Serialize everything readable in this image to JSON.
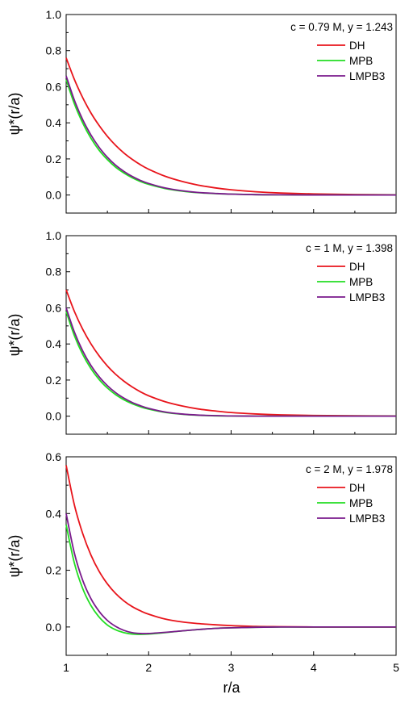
{
  "xlabel": "r/a",
  "chart_data": [
    {
      "type": "line",
      "annotation": "c = 0.79 M, y = 1.243",
      "xlabel": "",
      "ylabel": "ψ*(r/a)",
      "xlim": [
        1,
        5
      ],
      "ylim": [
        -0.1,
        1.0
      ],
      "xticks": [
        "1",
        "2",
        "3",
        "4",
        "5"
      ],
      "yticks": [
        "0.0",
        "0.2",
        "0.4",
        "0.6",
        "0.8",
        "1.0"
      ],
      "legend_position": "top-right",
      "series": [
        {
          "name": "DH",
          "color": "#e8141b",
          "x": [
            1.0,
            1.1,
            1.2,
            1.3,
            1.4,
            1.5,
            1.6,
            1.7,
            1.8,
            1.9,
            2.0,
            2.2,
            2.4,
            2.6,
            2.8,
            3.0,
            3.3,
            3.6,
            4.0,
            4.5,
            5.0
          ],
          "y": [
            0.76,
            0.64,
            0.54,
            0.455,
            0.385,
            0.325,
            0.275,
            0.233,
            0.198,
            0.168,
            0.143,
            0.104,
            0.076,
            0.055,
            0.04,
            0.029,
            0.018,
            0.011,
            0.006,
            0.003,
            0.001
          ]
        },
        {
          "name": "MPB",
          "color": "#22dd22",
          "x": [
            1.0,
            1.1,
            1.2,
            1.3,
            1.4,
            1.5,
            1.6,
            1.7,
            1.8,
            1.9,
            2.0,
            2.2,
            2.4,
            2.6,
            2.8,
            3.0,
            3.3,
            3.6,
            4.0,
            4.5,
            5.0
          ],
          "y": [
            0.64,
            0.505,
            0.4,
            0.315,
            0.248,
            0.196,
            0.154,
            0.122,
            0.096,
            0.075,
            0.059,
            0.036,
            0.022,
            0.013,
            0.008,
            0.005,
            0.002,
            0.001,
            0.0,
            0.0,
            0.0
          ]
        },
        {
          "name": "LMPB3",
          "color": "#7a1a8c",
          "x": [
            1.0,
            1.1,
            1.2,
            1.3,
            1.4,
            1.5,
            1.6,
            1.7,
            1.8,
            1.9,
            2.0,
            2.2,
            2.4,
            2.6,
            2.8,
            3.0,
            3.3,
            3.6,
            4.0,
            4.5,
            5.0
          ],
          "y": [
            0.66,
            0.525,
            0.418,
            0.333,
            0.264,
            0.209,
            0.165,
            0.131,
            0.103,
            0.081,
            0.064,
            0.039,
            0.024,
            0.014,
            0.009,
            0.005,
            0.002,
            0.001,
            0.0,
            0.0,
            0.0
          ]
        }
      ]
    },
    {
      "type": "line",
      "annotation": "c = 1 M, y = 1.398",
      "xlabel": "",
      "ylabel": "ψ*(r/a)",
      "xlim": [
        1,
        5
      ],
      "ylim": [
        -0.1,
        1.0
      ],
      "xticks": [
        "1",
        "2",
        "3",
        "4",
        "5"
      ],
      "yticks": [
        "0.0",
        "0.2",
        "0.4",
        "0.6",
        "0.8",
        "1.0"
      ],
      "legend_position": "top-right",
      "series": [
        {
          "name": "DH",
          "color": "#e8141b",
          "x": [
            1.0,
            1.1,
            1.2,
            1.3,
            1.4,
            1.5,
            1.6,
            1.7,
            1.8,
            1.9,
            2.0,
            2.2,
            2.4,
            2.6,
            2.8,
            3.0,
            3.3,
            3.6,
            4.0,
            4.5,
            5.0
          ],
          "y": [
            0.7,
            0.58,
            0.482,
            0.401,
            0.334,
            0.278,
            0.232,
            0.194,
            0.162,
            0.135,
            0.113,
            0.08,
            0.057,
            0.04,
            0.029,
            0.02,
            0.012,
            0.007,
            0.004,
            0.002,
            0.001
          ]
        },
        {
          "name": "MPB",
          "color": "#22dd22",
          "x": [
            1.0,
            1.1,
            1.2,
            1.3,
            1.4,
            1.5,
            1.6,
            1.7,
            1.8,
            1.9,
            2.0,
            2.2,
            2.4,
            2.6,
            2.8,
            3.0,
            3.3,
            3.6,
            4.0,
            4.5,
            5.0
          ],
          "y": [
            0.58,
            0.446,
            0.343,
            0.264,
            0.203,
            0.156,
            0.119,
            0.091,
            0.069,
            0.052,
            0.039,
            0.021,
            0.011,
            0.005,
            0.002,
            0.001,
            0.0,
            0.0,
            0.0,
            0.0,
            0.0
          ]
        },
        {
          "name": "LMPB3",
          "color": "#7a1a8c",
          "x": [
            1.0,
            1.1,
            1.2,
            1.3,
            1.4,
            1.5,
            1.6,
            1.7,
            1.8,
            1.9,
            2.0,
            2.2,
            2.4,
            2.6,
            2.8,
            3.0,
            3.3,
            3.6,
            4.0,
            4.5,
            5.0
          ],
          "y": [
            0.6,
            0.466,
            0.362,
            0.281,
            0.218,
            0.169,
            0.13,
            0.1,
            0.076,
            0.058,
            0.043,
            0.023,
            0.012,
            0.006,
            0.003,
            0.001,
            0.0,
            0.0,
            0.0,
            0.0,
            0.0
          ]
        }
      ]
    },
    {
      "type": "line",
      "annotation": "c = 2 M, y = 1.978",
      "xlabel": "r/a",
      "ylabel": "ψ*(r/a)",
      "xlim": [
        1,
        5
      ],
      "ylim": [
        -0.1,
        0.6
      ],
      "xticks": [
        "1",
        "2",
        "3",
        "4",
        "5"
      ],
      "yticks": [
        "0.0",
        "0.2",
        "0.4",
        "0.6"
      ],
      "legend_position": "top-right",
      "series": [
        {
          "name": "DH",
          "color": "#e8141b",
          "x": [
            1.0,
            1.1,
            1.2,
            1.3,
            1.4,
            1.5,
            1.6,
            1.7,
            1.8,
            1.9,
            2.0,
            2.2,
            2.4,
            2.6,
            2.8,
            3.0,
            3.3,
            3.6,
            4.0,
            4.5,
            5.0
          ],
          "y": [
            0.57,
            0.43,
            0.33,
            0.254,
            0.196,
            0.152,
            0.118,
            0.092,
            0.072,
            0.057,
            0.045,
            0.028,
            0.018,
            0.012,
            0.008,
            0.005,
            0.002,
            0.001,
            0.0,
            0.0,
            0.0
          ]
        },
        {
          "name": "MPB",
          "color": "#22dd22",
          "x": [
            1.0,
            1.1,
            1.2,
            1.3,
            1.4,
            1.5,
            1.6,
            1.7,
            1.8,
            1.9,
            2.0,
            2.2,
            2.4,
            2.6,
            2.8,
            3.0,
            3.3,
            3.6,
            4.0,
            4.5,
            5.0
          ],
          "y": [
            0.36,
            0.225,
            0.136,
            0.076,
            0.035,
            0.007,
            -0.01,
            -0.02,
            -0.025,
            -0.026,
            -0.025,
            -0.02,
            -0.014,
            -0.009,
            -0.005,
            -0.003,
            -0.001,
            0.0,
            0.0,
            0.0,
            0.0
          ]
        },
        {
          "name": "LMPB3",
          "color": "#7a1a8c",
          "x": [
            1.0,
            1.1,
            1.2,
            1.3,
            1.4,
            1.5,
            1.6,
            1.7,
            1.8,
            1.9,
            2.0,
            2.2,
            2.4,
            2.6,
            2.8,
            3.0,
            3.3,
            3.6,
            4.0,
            4.5,
            5.0
          ],
          "y": [
            0.4,
            0.26,
            0.165,
            0.1,
            0.055,
            0.023,
            0.002,
            -0.012,
            -0.02,
            -0.023,
            -0.023,
            -0.019,
            -0.014,
            -0.009,
            -0.005,
            -0.003,
            -0.001,
            0.0,
            0.0,
            0.0,
            0.0
          ]
        }
      ]
    }
  ]
}
